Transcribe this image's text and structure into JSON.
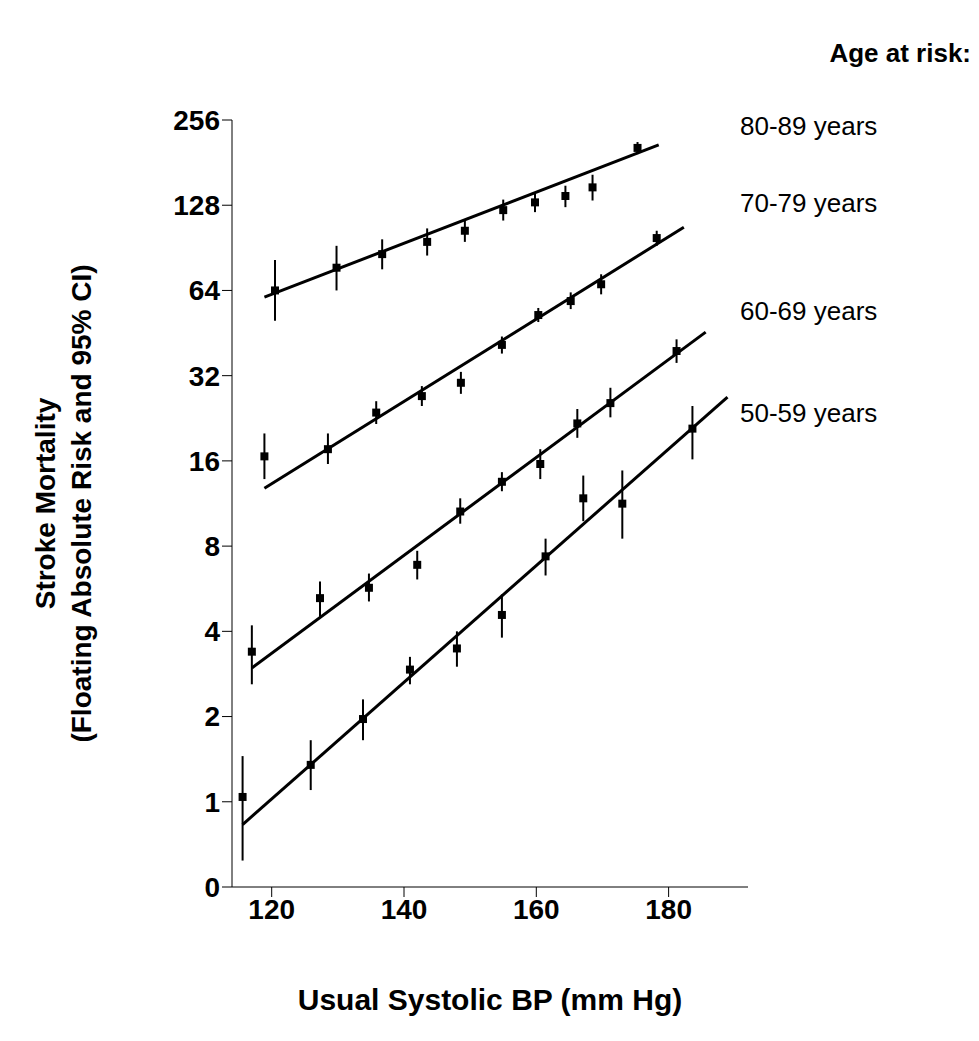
{
  "chart_data": {
    "type": "scatter",
    "xlabel": "Usual Systolic BP (mm Hg)",
    "ylabel": [
      "Stroke Mortality",
      "(Floating Absolute Risk and 95% CI)"
    ],
    "legend_title": "Age at risk:",
    "legend": "right",
    "log": "y",
    "marker": "square",
    "xlim": [
      114,
      192
    ],
    "xticks": [
      120,
      140,
      160,
      180
    ],
    "ylim": [
      0.5,
      256
    ],
    "yticks": [
      {
        "value": 0.5,
        "label": "0"
      },
      1,
      2,
      4,
      8,
      16,
      32,
      64,
      128,
      256
    ],
    "series": [
      {
        "name": "80-89 years",
        "color": "#000000",
        "x": [
          120.5,
          129.8,
          136.7,
          143.5,
          149.2,
          155,
          159.8,
          164.4,
          168.5,
          175.3
        ],
        "values": [
          64,
          77,
          86,
          95,
          104,
          123,
          131,
          138,
          148,
          204
        ],
        "ci_low": [
          50,
          64,
          76,
          85,
          95,
          113,
          121,
          126,
          133,
          194
        ],
        "ci_high": [
          82,
          92,
          97,
          106,
          114,
          134,
          142,
          150,
          164,
          214
        ],
        "fit_x": [
          118.9,
          178.5
        ],
        "fit_values": [
          60.6,
          209
        ]
      },
      {
        "name": "70-79 years",
        "color": "#000000",
        "x": [
          118.9,
          128.5,
          135.8,
          142.7,
          148.6,
          154.8,
          160.3,
          165.2,
          169.8,
          178.2
        ],
        "values": [
          16.6,
          17.6,
          23.7,
          27.1,
          30.2,
          41.1,
          52.4,
          58.7,
          67.3,
          98
        ],
        "ci_low": [
          13.8,
          15.6,
          21.6,
          25,
          27.6,
          38.3,
          49.5,
          55,
          62,
          92
        ],
        "ci_high": [
          20,
          20,
          26,
          29.4,
          33,
          44,
          55.5,
          63,
          73,
          104
        ],
        "fit_x": [
          118.9,
          182.3
        ],
        "fit_values": [
          12.8,
          107
        ]
      },
      {
        "name": "60-69 years",
        "color": "#000000",
        "x": [
          117,
          127.3,
          134.7,
          142,
          148.5,
          154.8,
          160.6,
          166.2,
          171.2,
          181.2
        ],
        "values": [
          3.39,
          5.24,
          5.7,
          6.87,
          10.6,
          13.5,
          15.6,
          21.7,
          25.6,
          39.1
        ],
        "ci_low": [
          2.6,
          4.5,
          5.1,
          6.1,
          9.6,
          12.5,
          13.8,
          19.3,
          22.8,
          35.5
        ],
        "ci_high": [
          4.2,
          6,
          6.4,
          7.7,
          11.8,
          14.6,
          17.6,
          24.4,
          29,
          43
        ],
        "fit_x": [
          117,
          185.6
        ],
        "fit_values": [
          2.97,
          45.6
        ]
      },
      {
        "name": "50-59 years",
        "color": "#000000",
        "x": [
          115.6,
          125.9,
          133.8,
          140.9,
          148,
          154.8,
          161.4,
          167.1,
          173,
          183.6
        ],
        "values": [
          1.04,
          1.35,
          1.96,
          2.93,
          3.48,
          4.57,
          7.36,
          11.8,
          11.3,
          20.8
        ],
        "ci_low": [
          0.62,
          1.1,
          1.65,
          2.6,
          3,
          3.8,
          6.3,
          9.8,
          8.5,
          16.2
        ],
        "ci_high": [
          1.45,
          1.65,
          2.3,
          3.25,
          4,
          5.4,
          8.5,
          14.2,
          14.8,
          25
        ],
        "fit_x": [
          115.6,
          188.9
        ],
        "fit_values": [
          0.83,
          26.9
        ]
      }
    ]
  }
}
